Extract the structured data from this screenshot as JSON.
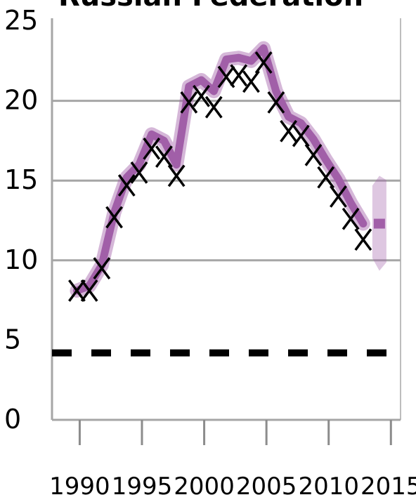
{
  "chart_data": {
    "type": "line",
    "title": "Russian Federation",
    "xlabel": "",
    "ylabel": "",
    "xlim": [
      1988,
      2016
    ],
    "ylim": [
      0,
      25
    ],
    "x_ticks": [
      "1990",
      "1995",
      "2000",
      "2005",
      "2010",
      "2015"
    ],
    "y_ticks": [
      "0",
      "5",
      "10",
      "15",
      "20",
      "25"
    ],
    "grid": {
      "horizontal": true,
      "values": [
        10,
        15,
        20
      ]
    },
    "reference_line": {
      "value": 4.2,
      "style": "dashed",
      "color": "#000000"
    },
    "series": [
      {
        "style": "thick-line",
        "color": "#a15fa8",
        "x": [
          1990,
          1991,
          1992,
          1993,
          1994,
          1995,
          1996,
          1997,
          1998,
          1999,
          2000,
          2001,
          2002,
          2003,
          2004,
          2005,
          2006,
          2007,
          2008,
          2009,
          2010,
          2011,
          2012,
          2013
        ],
        "values": [
          8.1,
          8.4,
          9.7,
          13.0,
          15.2,
          16.0,
          17.9,
          17.5,
          16.0,
          20.9,
          21.3,
          20.6,
          22.6,
          22.7,
          22.5,
          23.3,
          20.6,
          19.0,
          18.6,
          17.6,
          16.3,
          15.1,
          13.6,
          12.3
        ]
      },
      {
        "style": "x-markers",
        "color": "#000000",
        "x": [
          1990,
          1991,
          1992,
          1993,
          1994,
          1995,
          1996,
          1997,
          1998,
          1999,
          2000,
          2001,
          2002,
          2003,
          2004,
          2005,
          2006,
          2007,
          2008,
          2009,
          2010,
          2011,
          2012,
          2013
        ],
        "values": [
          8.1,
          8.1,
          9.5,
          12.7,
          14.7,
          15.5,
          17.0,
          16.5,
          15.3,
          19.9,
          20.3,
          19.6,
          21.5,
          21.6,
          21.2,
          22.4,
          19.9,
          18.1,
          17.8,
          16.6,
          15.2,
          14.0,
          12.6,
          11.3
        ]
      }
    ],
    "projection": {
      "color": "#a15fa8",
      "x": 2014.3,
      "value": 12.3,
      "low": 9.7,
      "high": 15.3
    }
  }
}
